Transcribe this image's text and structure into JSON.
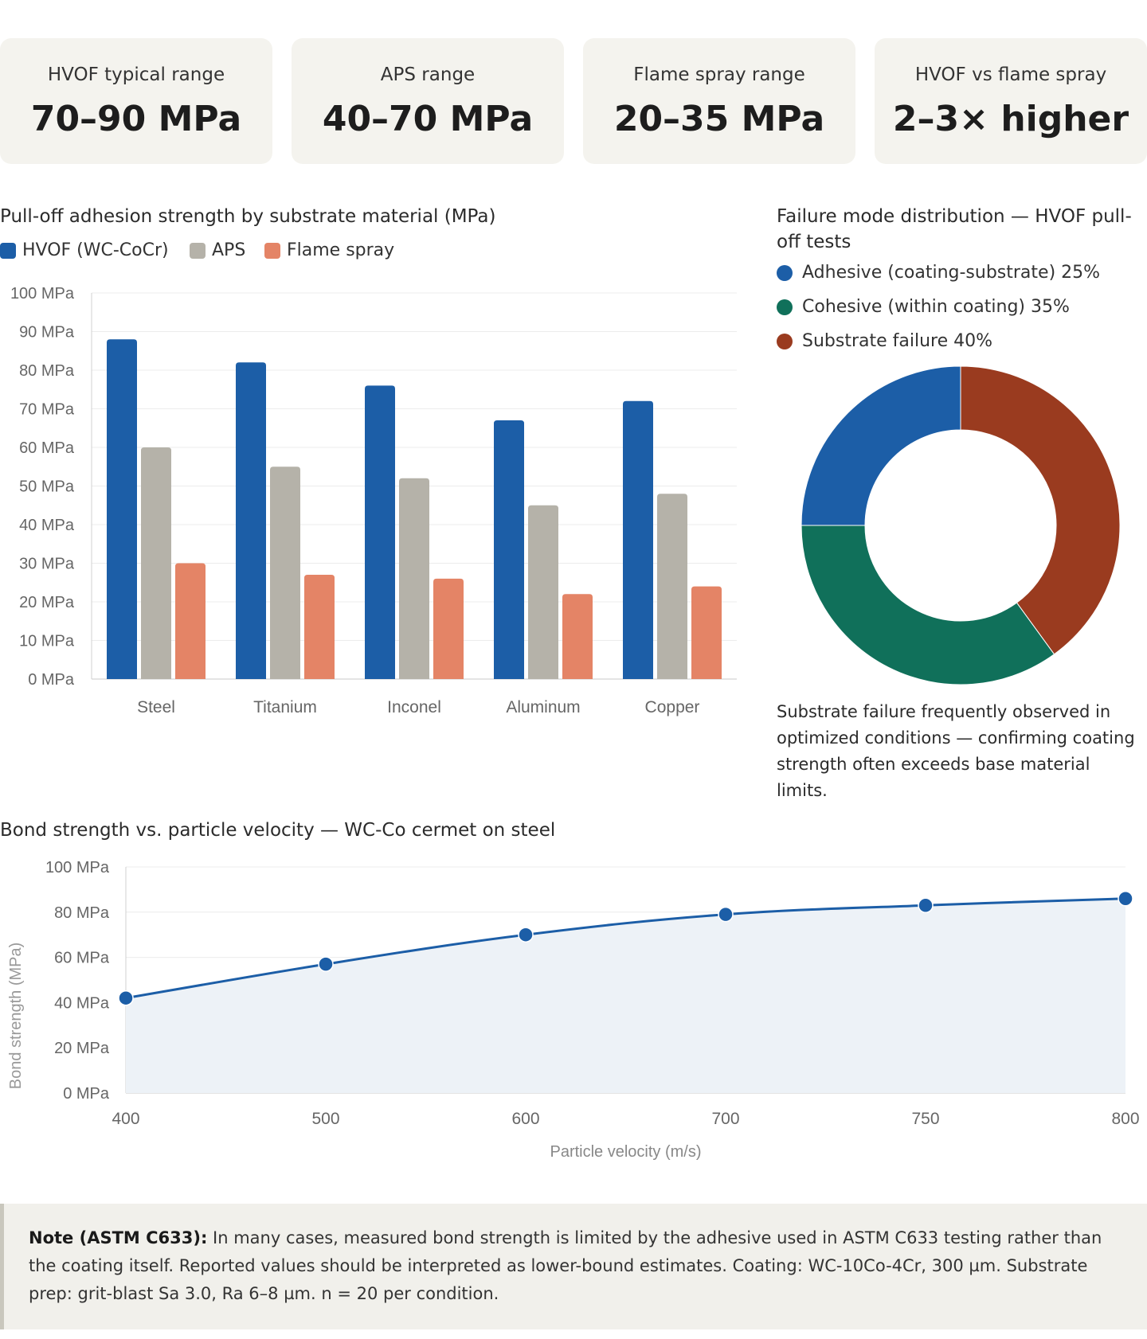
{
  "kpis": [
    {
      "label": "HVOF typical range",
      "value": "70–90 MPa"
    },
    {
      "label": "APS range",
      "value": "40–70 MPa"
    },
    {
      "label": "Flame spray range",
      "value": "20–35 MPa"
    },
    {
      "label": "HVOF vs flame spray",
      "value": "2–3× higher"
    }
  ],
  "colors": {
    "hvof": "#1c5ea7",
    "aps": "#b5b2a9",
    "flame": "#e48466",
    "adhesive": "#1c5ea7",
    "cohesive": "#10705a",
    "substrate": "#9a3b1f",
    "line": "#1c5ea7",
    "area": "#edf2f7"
  },
  "bar_chart": {
    "title": "Pull-off adhesion strength by substrate material (MPa)",
    "legend": [
      "HVOF (WC-CoCr)",
      "APS",
      "Flame spray"
    ]
  },
  "donut": {
    "title": "Failure mode distribution — HVOF pull-off tests",
    "legend": [
      "Adhesive (coating-substrate) 25%",
      "Cohesive (within coating) 35%",
      "Substrate failure 40%"
    ],
    "caption": "Substrate failure frequently observed in optimized conditions — confirming coating strength often exceeds base material limits."
  },
  "line_chart": {
    "title": "Bond strength vs. particle velocity — WC-Co cermet on steel"
  },
  "note": {
    "label": "Note (ASTM C633):",
    "text": "In many cases, measured bond strength is limited by the adhesive used in ASTM C633 testing rather than the coating itself. Reported values should be interpreted as lower-bound estimates. Coating: WC-10Co-4Cr, 300 µm. Substrate prep: grit-blast Sa 3.0, Ra 6–8 µm. n = 20 per condition."
  },
  "chart_data": [
    {
      "type": "bar",
      "title": "Pull-off adhesion strength by substrate material (MPa)",
      "categories": [
        "Steel",
        "Titanium",
        "Inconel",
        "Aluminum",
        "Copper"
      ],
      "series": [
        {
          "name": "HVOF (WC-CoCr)",
          "values": [
            88,
            82,
            76,
            67,
            72
          ]
        },
        {
          "name": "APS",
          "values": [
            60,
            55,
            52,
            45,
            48
          ]
        },
        {
          "name": "Flame spray",
          "values": [
            30,
            27,
            26,
            22,
            24
          ]
        }
      ],
      "yticks": [
        "0 MPa",
        "10 MPa",
        "20 MPa",
        "30 MPa",
        "40 MPa",
        "50 MPa",
        "60 MPa",
        "70 MPa",
        "80 MPa",
        "90 MPa",
        "100 MPa"
      ],
      "ylim": [
        0,
        100
      ],
      "xlabel": "",
      "ylabel": "",
      "legend_position": "top-left"
    },
    {
      "type": "pie",
      "title": "Failure mode distribution — HVOF pull-off tests",
      "labels": [
        "Adhesive (coating-substrate)",
        "Cohesive (within coating)",
        "Substrate failure"
      ],
      "values": [
        25,
        35,
        40
      ],
      "donut": true
    },
    {
      "type": "area",
      "title": "Bond strength vs. particle velocity — WC-Co cermet on steel",
      "x": [
        "400",
        "500",
        "600",
        "700",
        "750",
        "800"
      ],
      "values": [
        42,
        57,
        70,
        79,
        83,
        86
      ],
      "yticks": [
        "0 MPa",
        "20 MPa",
        "40 MPa",
        "60 MPa",
        "80 MPa",
        "100 MPa"
      ],
      "ylim": [
        0,
        100
      ],
      "xlabel": "Particle velocity (m/s)",
      "ylabel": "Bond strength (MPa)"
    }
  ]
}
